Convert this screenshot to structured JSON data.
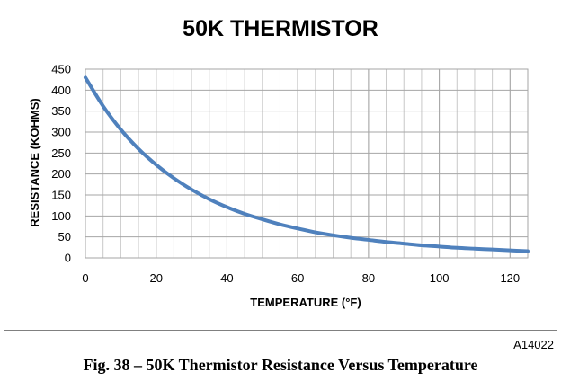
{
  "chart_data": {
    "type": "line",
    "title": "50K THERMISTOR",
    "xlabel": "TEMPERATURE (°F)",
    "ylabel": "RESISTANCE (KOHMS)",
    "xlim": [
      0,
      125
    ],
    "ylim": [
      0,
      450
    ],
    "x_ticks": [
      0,
      20,
      40,
      60,
      80,
      100,
      120
    ],
    "y_ticks": [
      0,
      50,
      100,
      150,
      200,
      250,
      300,
      350,
      400,
      450
    ],
    "grid": true,
    "legend": "none",
    "series_color": "#4f81bd",
    "series": [
      {
        "x": [
          0,
          5,
          10,
          15,
          20,
          25,
          30,
          35,
          40,
          45,
          50,
          55,
          60,
          65,
          70,
          75,
          80,
          85,
          90,
          95,
          100,
          105,
          110,
          115,
          120,
          125
        ],
        "values": [
          430,
          362,
          306,
          260,
          222,
          190,
          163,
          140,
          121,
          105,
          92,
          80,
          70,
          61,
          54,
          48,
          43,
          38,
          34,
          30,
          27,
          24,
          22,
          20,
          18,
          16
        ]
      }
    ]
  },
  "figure_code": "A14022",
  "caption": "Fig. 38 – 50K Thermistor Resistance Versus Temperature"
}
